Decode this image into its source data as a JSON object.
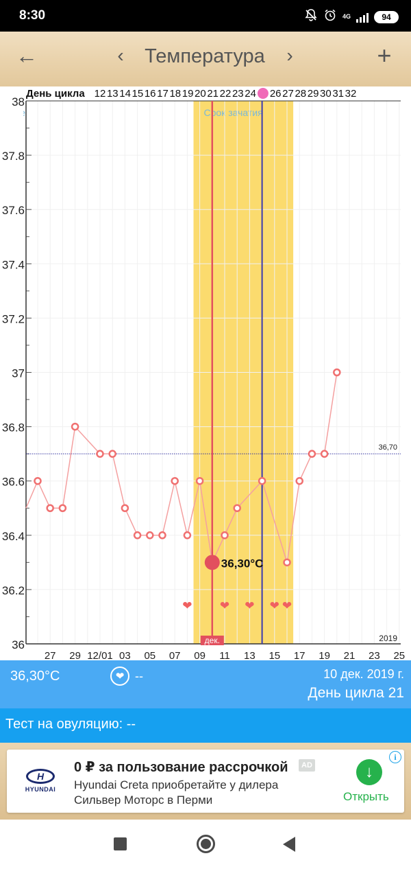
{
  "status_bar": {
    "time": "8:30",
    "network_label": "4G",
    "battery": "94",
    "icons": [
      "notifications-off-icon",
      "alarm-icon",
      "signal-icon",
      "battery-icon"
    ]
  },
  "app_bar": {
    "title": "Температура",
    "back_icon": "←",
    "prev_icon": "‹",
    "next_icon": "›",
    "add_icon": "+"
  },
  "chart_data": {
    "type": "line",
    "cycle_day_label": "День цикла",
    "cycle_days": [
      "12",
      "13",
      "14",
      "15",
      "16",
      "17",
      "18",
      "19",
      "20",
      "21",
      "22",
      "23",
      "24",
      "25",
      "26",
      "27",
      "28",
      "29",
      "30",
      "31",
      "32"
    ],
    "ovulation_day_marker": "25",
    "x_date_labels": [
      "27",
      "29",
      "12/01",
      "03",
      "05",
      "07",
      "09",
      "11",
      "13",
      "15",
      "17",
      "19",
      "21",
      "23",
      "25"
    ],
    "month_label": "дек.",
    "year_label": "2019",
    "y_ticks": [
      "38",
      "37.8",
      "37.6",
      "37.4",
      "37.2",
      "37",
      "36.8",
      "36.6",
      "36.4",
      "36.2",
      "36"
    ],
    "ylim": [
      36,
      38
    ],
    "series": [
      {
        "dates": [
          "2019-11-25",
          "2019-11-26",
          "2019-11-27",
          "2019-11-28",
          "2019-11-29",
          "2019-12-01",
          "2019-12-02",
          "2019-12-03",
          "2019-12-04",
          "2019-12-05",
          "2019-12-06",
          "2019-12-07",
          "2019-12-08",
          "2019-12-09",
          "2019-12-10",
          "2019-12-11",
          "2019-12-12",
          "2019-12-14",
          "2019-12-16",
          "2019-12-17",
          "2019-12-18",
          "2019-12-19",
          "2019-12-20"
        ],
        "values": [
          36.5,
          36.6,
          36.5,
          36.5,
          36.8,
          36.7,
          36.7,
          36.5,
          36.4,
          36.4,
          36.4,
          36.6,
          36.4,
          36.6,
          36.3,
          36.4,
          36.5,
          36.6,
          36.3,
          36.6,
          36.7,
          36.7,
          37.0
        ]
      }
    ],
    "selected": {
      "date": "2019-12-10",
      "value": 36.3,
      "label": "36,30°C"
    },
    "coverline": {
      "value": 36.7,
      "label": "36,70"
    },
    "fertile_window": {
      "start": "2019-12-09",
      "end": "2019-12-16",
      "label": "Срок зачатия"
    },
    "ovulation_line_date": "2019-12-14",
    "period_band": {
      "start": "2019-11-24",
      "end": "2019-11-25",
      "label": "Месячные"
    },
    "intercourse_dates": [
      "2019-12-08",
      "2019-12-11",
      "2019-12-13",
      "2019-12-15",
      "2019-12-16"
    ],
    "colors": {
      "fertile": "#fbdb6e",
      "period": "#ffcfcf",
      "line": "#f4a0a0",
      "point": "#f07070",
      "selected_line": "#e2505e",
      "ovulation_line": "#3b3bb0",
      "coverline": "#3030a0",
      "heart": "#f06060"
    }
  },
  "info_bar": {
    "temperature": "36,30°C",
    "heart_icon": "❤",
    "heart_value": "--",
    "date": "10 дек. 2019 г.",
    "cycle_day": "День цикла 21"
  },
  "ovulation_test": {
    "label": "Тест на овуляцию: --"
  },
  "ad": {
    "brand": "HYUNDAI",
    "brand_mark": "H",
    "headline": "0 ₽ за пользование рассрочкой",
    "badge": "AD",
    "line1": "Hyundai Creta приобретайте у дилера",
    "line2": "Сильвер Моторс в Перми",
    "button": "Открыть",
    "info_icon": "i",
    "open_icon": "↓"
  }
}
